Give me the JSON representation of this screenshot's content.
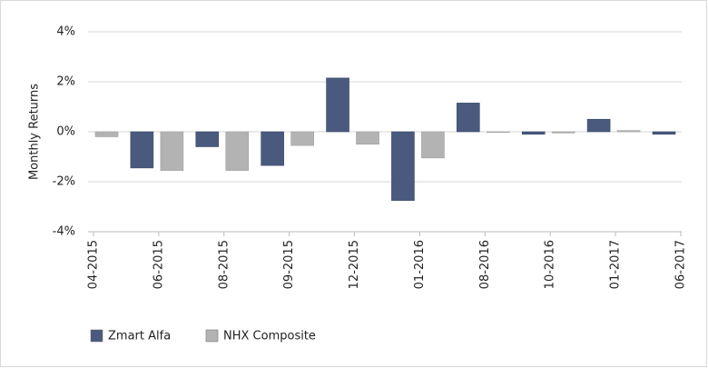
{
  "chart_data": {
    "type": "bar",
    "y_label": "Monthly Returns",
    "categories": [
      "04-2015",
      "06-2015",
      "08-2015",
      "09-2015",
      "12-2015",
      "01-2016",
      "08-2016",
      "10-2016",
      "01-2017",
      "06-2017"
    ],
    "series": [
      {
        "name": "Zmart Alfa",
        "color": "#4a5a7f",
        "values": [
          null,
          -1.45,
          -0.6,
          -1.35,
          2.15,
          -2.75,
          1.15,
          -0.1,
          0.5,
          -0.1
        ]
      },
      {
        "name": "NHX Composite",
        "color": "#b3b3b3",
        "values": [
          -0.2,
          -1.55,
          -1.55,
          -0.55,
          -0.5,
          -1.05,
          0.0,
          -0.05,
          0.05,
          null
        ]
      }
    ],
    "ylim": [
      -4,
      4
    ],
    "yticks": [
      {
        "value": -4,
        "label": "-4%"
      },
      {
        "value": -2,
        "label": "-2%"
      },
      {
        "value": 0,
        "label": "0%"
      },
      {
        "value": 2,
        "label": "2%"
      },
      {
        "value": 4,
        "label": "4%"
      }
    ],
    "grid": true,
    "legend": "bottom-left"
  }
}
